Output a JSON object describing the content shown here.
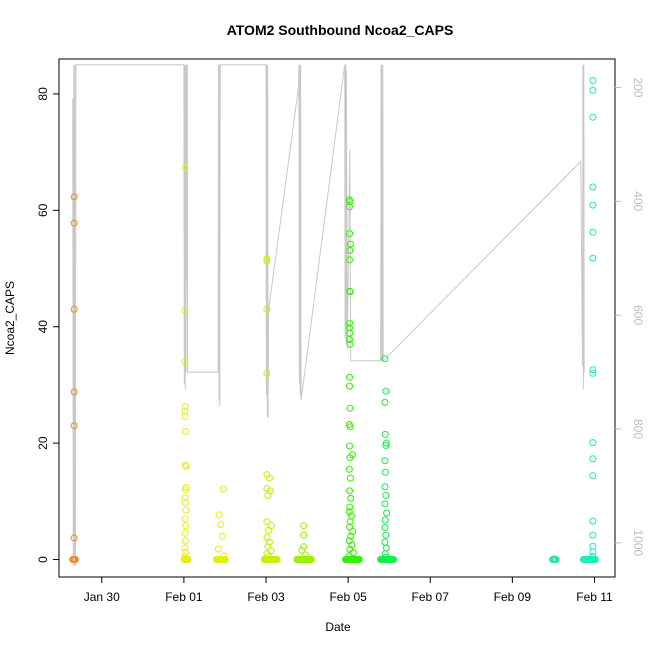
{
  "chart_data": {
    "type": "scatter",
    "title": "ATOM2 Southbound Ncoa2_CAPS",
    "xlabel": "Date",
    "ylabel": "Ncoa2_CAPS",
    "xlim": [
      "2011-01-28T23:00",
      "2011-02-11T12:00"
    ],
    "ylim": [
      -3,
      86
    ],
    "yticks": [
      0,
      20,
      40,
      60,
      80
    ],
    "xticks": [
      "2011-01-30",
      "2011-02-01",
      "2011-02-03",
      "2011-02-05",
      "2011-02-07",
      "2011-02-09",
      "2011-02-11"
    ],
    "xtick_labels": [
      "Jan 30",
      "Feb 01",
      "Feb 03",
      "Feb 05",
      "Feb 07",
      "Feb 09",
      "Feb 11"
    ],
    "right_axis": {
      "color": "#bdbdbd",
      "ylim": [
        1060,
        150
      ],
      "ticks": [
        200,
        400,
        600,
        800,
        1000
      ]
    },
    "grid": false,
    "legend": "none",
    "series": [
      {
        "color": "#f08c1c",
        "x_range": [
          "2011-01-29T07:00",
          "2011-01-29T08:30"
        ],
        "points": [
          {
            "x": "2011-01-29T07:50",
            "y": 62.3
          },
          {
            "x": "2011-01-29T07:50",
            "y": 57.8
          },
          {
            "x": "2011-01-29T07:50",
            "y": 43.0
          },
          {
            "x": "2011-01-29T07:50",
            "y": 28.8
          },
          {
            "x": "2011-01-29T07:50",
            "y": 23.0
          },
          {
            "x": "2011-01-29T07:50",
            "y": 3.7
          }
        ]
      },
      {
        "color": "#e6ef1a",
        "x_range": [
          "2011-02-01T00:00",
          "2011-02-01T02:30"
        ],
        "points": [
          {
            "x": "2011-02-01T00:40",
            "y": 67.3
          },
          {
            "x": "2011-02-01T00:40",
            "y": 42.8
          },
          {
            "x": "2011-02-01T00:40",
            "y": 34.0
          },
          {
            "x": "2011-02-01T00:40",
            "y": 26.3
          },
          {
            "x": "2011-02-01T00:40",
            "y": 25.5
          },
          {
            "x": "2011-02-01T00:40",
            "y": 24.6
          },
          {
            "x": "2011-02-01T00:50",
            "y": 22.0
          },
          {
            "x": "2011-02-01T00:50",
            "y": 16.2
          },
          {
            "x": "2011-02-01T01:10",
            "y": 16.0
          },
          {
            "x": "2011-02-01T01:20",
            "y": 12.4
          },
          {
            "x": "2011-02-01T00:55",
            "y": 12.0
          },
          {
            "x": "2011-02-01T00:40",
            "y": 10.6
          },
          {
            "x": "2011-02-01T00:50",
            "y": 9.8
          },
          {
            "x": "2011-02-01T01:10",
            "y": 8.5
          },
          {
            "x": "2011-02-01T00:40",
            "y": 7.0
          },
          {
            "x": "2011-02-01T01:00",
            "y": 5.8
          },
          {
            "x": "2011-02-01T00:40",
            "y": 4.5
          },
          {
            "x": "2011-02-01T00:50",
            "y": 3.2
          },
          {
            "x": "2011-02-01T00:40",
            "y": 2.0
          },
          {
            "x": "2011-02-01T00:50",
            "y": 1.2
          },
          {
            "x": "2011-02-01T00:40",
            "y": 0.5
          }
        ]
      },
      {
        "color": "#e1f200",
        "x_range": [
          "2011-02-01T19:00",
          "2011-02-02T00:00"
        ],
        "points": [
          {
            "x": "2011-02-01T23:00",
            "y": 12.1
          },
          {
            "x": "2011-02-01T20:30",
            "y": 7.7
          },
          {
            "x": "2011-02-01T21:30",
            "y": 6.0
          },
          {
            "x": "2011-02-01T22:30",
            "y": 4.0
          },
          {
            "x": "2011-02-01T20:10",
            "y": 1.8
          },
          {
            "x": "2011-02-01T23:30",
            "y": 0.6
          }
        ]
      },
      {
        "color": "#c8f000",
        "x_range": [
          "2011-02-02T23:00",
          "2011-02-03T06:30"
        ],
        "points": [
          {
            "x": "2011-02-03T00:30",
            "y": 51.7
          },
          {
            "x": "2011-02-03T00:30",
            "y": 51.3
          },
          {
            "x": "2011-02-03T00:30",
            "y": 43.0
          },
          {
            "x": "2011-02-03T00:30",
            "y": 32.0
          },
          {
            "x": "2011-02-03T00:30",
            "y": 14.6
          },
          {
            "x": "2011-02-03T02:00",
            "y": 14.0
          },
          {
            "x": "2011-02-03T00:30",
            "y": 12.2
          },
          {
            "x": "2011-02-03T02:30",
            "y": 11.8
          },
          {
            "x": "2011-02-03T01:00",
            "y": 11.0
          },
          {
            "x": "2011-02-03T00:30",
            "y": 6.5
          },
          {
            "x": "2011-02-03T03:00",
            "y": 5.8
          },
          {
            "x": "2011-02-03T01:30",
            "y": 5.0
          },
          {
            "x": "2011-02-03T00:40",
            "y": 3.8
          },
          {
            "x": "2011-02-03T02:00",
            "y": 3.0
          },
          {
            "x": "2011-02-03T01:00",
            "y": 2.2
          },
          {
            "x": "2011-02-03T03:00",
            "y": 1.5
          },
          {
            "x": "2011-02-03T00:30",
            "y": 1.0
          },
          {
            "x": "2011-02-03T01:30",
            "y": 0.5
          }
        ]
      },
      {
        "color": "#9ef000",
        "x_range": [
          "2011-02-03T18:00",
          "2011-02-04T02:30"
        ],
        "points": [
          {
            "x": "2011-02-03T22:00",
            "y": 5.8
          },
          {
            "x": "2011-02-03T22:00",
            "y": 4.2
          },
          {
            "x": "2011-02-03T22:00",
            "y": 2.2
          },
          {
            "x": "2011-02-03T21:00",
            "y": 1.6
          },
          {
            "x": "2011-02-03T23:00",
            "y": 0.8
          }
        ]
      },
      {
        "color": "#33f200",
        "x_range": [
          "2011-02-04T22:30",
          "2011-02-05T06:30"
        ],
        "points": [
          {
            "x": "2011-02-05T00:40",
            "y": 61.8
          },
          {
            "x": "2011-02-05T01:10",
            "y": 61.5
          },
          {
            "x": "2011-02-05T00:50",
            "y": 60.6
          },
          {
            "x": "2011-02-05T00:50",
            "y": 56.0
          },
          {
            "x": "2011-02-05T01:20",
            "y": 54.2
          },
          {
            "x": "2011-02-05T01:00",
            "y": 53.1
          },
          {
            "x": "2011-02-05T00:50",
            "y": 51.5
          },
          {
            "x": "2011-02-05T01:00",
            "y": 46.1
          },
          {
            "x": "2011-02-05T01:10",
            "y": 46.0
          },
          {
            "x": "2011-02-05T00:50",
            "y": 40.6
          },
          {
            "x": "2011-02-05T00:50",
            "y": 39.8
          },
          {
            "x": "2011-02-05T01:00",
            "y": 38.9
          },
          {
            "x": "2011-02-05T00:50",
            "y": 37.8
          },
          {
            "x": "2011-02-05T01:10",
            "y": 37.0
          },
          {
            "x": "2011-02-05T00:50",
            "y": 31.3
          },
          {
            "x": "2011-02-05T00:50",
            "y": 29.8
          },
          {
            "x": "2011-02-05T01:00",
            "y": 26.0
          },
          {
            "x": "2011-02-05T00:40",
            "y": 23.2
          },
          {
            "x": "2011-02-05T01:10",
            "y": 22.8
          },
          {
            "x": "2011-02-05T00:50",
            "y": 19.5
          },
          {
            "x": "2011-02-05T02:30",
            "y": 18.0
          },
          {
            "x": "2011-02-05T01:00",
            "y": 17.5
          },
          {
            "x": "2011-02-05T00:40",
            "y": 15.5
          },
          {
            "x": "2011-02-05T01:20",
            "y": 14.0
          },
          {
            "x": "2011-02-05T00:50",
            "y": 11.8
          },
          {
            "x": "2011-02-05T01:30",
            "y": 10.5
          },
          {
            "x": "2011-02-05T01:00",
            "y": 9.0
          },
          {
            "x": "2011-02-05T00:40",
            "y": 8.2
          },
          {
            "x": "2011-02-05T02:00",
            "y": 7.5
          },
          {
            "x": "2011-02-05T01:10",
            "y": 6.5
          },
          {
            "x": "2011-02-05T00:50",
            "y": 5.6
          },
          {
            "x": "2011-02-05T02:40",
            "y": 4.8
          },
          {
            "x": "2011-02-05T01:30",
            "y": 4.0
          },
          {
            "x": "2011-02-05T00:40",
            "y": 3.2
          },
          {
            "x": "2011-02-05T02:10",
            "y": 2.5
          },
          {
            "x": "2011-02-05T01:00",
            "y": 1.8
          },
          {
            "x": "2011-02-05T03:00",
            "y": 1.2
          },
          {
            "x": "2011-02-05T00:30",
            "y": 0.6
          }
        ]
      },
      {
        "color": "#14f24c",
        "x_range": [
          "2011-02-05T19:00",
          "2011-02-06T02:30"
        ],
        "points": [
          {
            "x": "2011-02-05T21:30",
            "y": 34.5
          },
          {
            "x": "2011-02-05T22:00",
            "y": 28.9
          },
          {
            "x": "2011-02-05T21:30",
            "y": 27.0
          },
          {
            "x": "2011-02-05T21:40",
            "y": 21.5
          },
          {
            "x": "2011-02-05T22:20",
            "y": 20.0
          },
          {
            "x": "2011-02-05T22:00",
            "y": 19.6
          },
          {
            "x": "2011-02-05T21:30",
            "y": 17.0
          },
          {
            "x": "2011-02-05T21:40",
            "y": 15.0
          },
          {
            "x": "2011-02-05T21:30",
            "y": 12.5
          },
          {
            "x": "2011-02-05T22:00",
            "y": 11.0
          },
          {
            "x": "2011-02-05T21:30",
            "y": 9.6
          },
          {
            "x": "2011-02-05T22:30",
            "y": 8.0
          },
          {
            "x": "2011-02-05T21:40",
            "y": 6.8
          },
          {
            "x": "2011-02-05T21:30",
            "y": 5.5
          },
          {
            "x": "2011-02-05T22:00",
            "y": 4.2
          },
          {
            "x": "2011-02-05T21:30",
            "y": 3.0
          },
          {
            "x": "2011-02-05T22:20",
            "y": 2.0
          },
          {
            "x": "2011-02-05T21:40",
            "y": 1.0
          },
          {
            "x": "2011-02-05T22:00",
            "y": 0.4
          }
        ]
      },
      {
        "color": "#12eea8",
        "x_range": [
          "2011-02-09T23:30",
          "2011-02-10T01:30"
        ],
        "points": [
          {
            "x": "2011-02-10T00:30",
            "y": 0.1
          }
        ]
      },
      {
        "color": "#1af0b8",
        "x_range": [
          "2011-02-10T17:30",
          "2011-02-11T00:30"
        ],
        "points": [
          {
            "x": "2011-02-10T23:00",
            "y": 82.3
          },
          {
            "x": "2011-02-10T23:00",
            "y": 80.6
          },
          {
            "x": "2011-02-10T23:00",
            "y": 76.0
          },
          {
            "x": "2011-02-10T23:00",
            "y": 64.0
          },
          {
            "x": "2011-02-10T23:00",
            "y": 60.9
          },
          {
            "x": "2011-02-10T23:00",
            "y": 56.2
          },
          {
            "x": "2011-02-10T23:00",
            "y": 51.8
          },
          {
            "x": "2011-02-10T23:00",
            "y": 32.6
          },
          {
            "x": "2011-02-10T23:00",
            "y": 32.0
          },
          {
            "x": "2011-02-10T23:00",
            "y": 20.1
          },
          {
            "x": "2011-02-10T23:00",
            "y": 17.3
          },
          {
            "x": "2011-02-10T23:00",
            "y": 14.4
          },
          {
            "x": "2011-02-10T23:00",
            "y": 6.6
          },
          {
            "x": "2011-02-10T23:00",
            "y": 4.2
          },
          {
            "x": "2011-02-10T23:00",
            "y": 2.3
          },
          {
            "x": "2011-02-10T23:00",
            "y": 1.3
          },
          {
            "x": "2011-02-10T23:00",
            "y": 0.5
          }
        ]
      }
    ],
    "depth_trace": {
      "color": "#c8c8c8",
      "note_axis": "right",
      "points": [
        {
          "x": "2011-01-29T07:00",
          "y": 220
        },
        {
          "x": "2011-01-29T07:20",
          "y": 1040
        },
        {
          "x": "2011-01-29T07:40",
          "y": 160
        },
        {
          "x": "2011-01-29T08:00",
          "y": 1040
        },
        {
          "x": "2011-01-29T08:20",
          "y": 160
        },
        {
          "x": "2011-01-29T08:40",
          "y": 1040
        },
        {
          "x": "2011-01-29T08:50",
          "y": 160
        },
        {
          "x": "2011-02-01T00:00",
          "y": 160
        },
        {
          "x": "2011-02-01T00:15",
          "y": 720
        },
        {
          "x": "2011-02-01T00:30",
          "y": 160
        },
        {
          "x": "2011-02-01T00:45",
          "y": 730
        },
        {
          "x": "2011-02-01T01:00",
          "y": 160
        },
        {
          "x": "2011-02-01T01:15",
          "y": 700
        },
        {
          "x": "2011-02-01T01:30",
          "y": 160
        },
        {
          "x": "2011-02-01T01:45",
          "y": 540
        },
        {
          "x": "2011-02-01T02:00",
          "y": 160
        },
        {
          "x": "2011-02-01T02:10",
          "y": 700
        },
        {
          "x": "2011-02-01T20:00",
          "y": 700
        },
        {
          "x": "2011-02-01T20:15",
          "y": 160
        },
        {
          "x": "2011-02-01T20:30",
          "y": 750
        },
        {
          "x": "2011-02-01T20:45",
          "y": 160
        },
        {
          "x": "2011-02-01T21:00",
          "y": 760
        },
        {
          "x": "2011-02-01T21:15",
          "y": 160
        },
        {
          "x": "2011-02-03T00:00",
          "y": 160
        },
        {
          "x": "2011-02-03T00:15",
          "y": 740
        },
        {
          "x": "2011-02-03T00:30",
          "y": 160
        },
        {
          "x": "2011-02-03T00:45",
          "y": 780
        },
        {
          "x": "2011-02-03T01:00",
          "y": 160
        },
        {
          "x": "2011-02-03T01:15",
          "y": 780
        },
        {
          "x": "2011-02-03T01:30",
          "y": 590
        },
        {
          "x": "2011-02-03T19:00",
          "y": 200
        },
        {
          "x": "2011-02-03T19:15",
          "y": 160
        },
        {
          "x": "2011-02-03T19:30",
          "y": 720
        },
        {
          "x": "2011-02-03T19:45",
          "y": 160
        },
        {
          "x": "2011-02-03T20:00",
          "y": 740
        },
        {
          "x": "2011-02-03T20:15",
          "y": 160
        },
        {
          "x": "2011-02-03T20:30",
          "y": 750
        },
        {
          "x": "2011-02-04T22:00",
          "y": 160
        },
        {
          "x": "2011-02-04T22:15",
          "y": 640
        },
        {
          "x": "2011-02-04T22:30",
          "y": 160
        },
        {
          "x": "2011-02-04T22:45",
          "y": 650
        },
        {
          "x": "2011-02-04T23:00",
          "y": 170
        },
        {
          "x": "2011-02-04T23:30",
          "y": 660
        },
        {
          "x": "2011-02-05T01:00",
          "y": 310
        },
        {
          "x": "2011-02-05T01:30",
          "y": 680
        },
        {
          "x": "2011-02-05T19:00",
          "y": 680
        },
        {
          "x": "2011-02-05T19:15",
          "y": 160
        },
        {
          "x": "2011-02-05T19:30",
          "y": 680
        },
        {
          "x": "2011-02-05T19:45",
          "y": 160
        },
        {
          "x": "2011-02-05T20:00",
          "y": 680
        },
        {
          "x": "2011-02-05T20:15",
          "y": 160
        },
        {
          "x": "2011-02-05T20:30",
          "y": 680
        },
        {
          "x": "2011-02-10T16:00",
          "y": 330
        },
        {
          "x": "2011-02-10T17:00",
          "y": 690
        },
        {
          "x": "2011-02-10T17:15",
          "y": 160
        },
        {
          "x": "2011-02-10T17:30",
          "y": 730
        },
        {
          "x": "2011-02-10T17:45",
          "y": 160
        },
        {
          "x": "2011-02-10T18:00",
          "y": 700
        }
      ]
    }
  }
}
